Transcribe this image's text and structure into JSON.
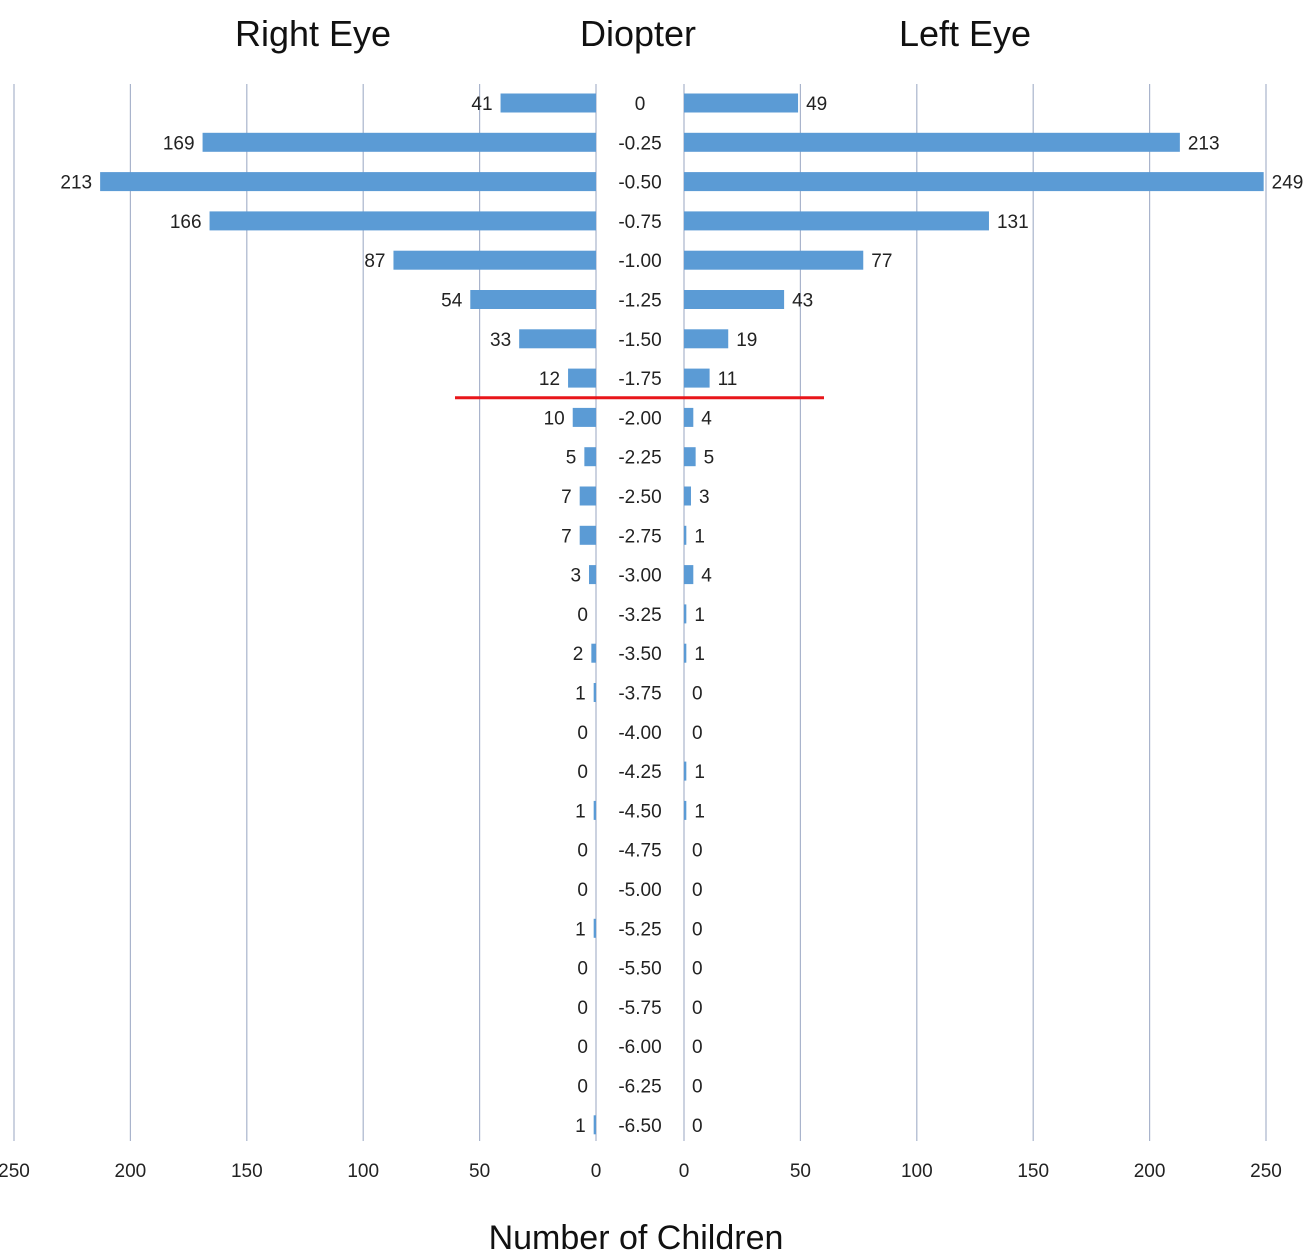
{
  "chart_data": {
    "type": "bar",
    "orientation": "horizontal-butterfly",
    "center_title": "Diopter",
    "xlabel": "Number of Children",
    "categories": [
      "0",
      "-0.25",
      "-0.50",
      "-0.75",
      "-1.00",
      "-1.25",
      "-1.50",
      "-1.75",
      "-2.00",
      "-2.25",
      "-2.50",
      "-2.75",
      "-3.00",
      "-3.25",
      "-3.50",
      "-3.75",
      "-4.00",
      "-4.25",
      "-4.50",
      "-4.75",
      "-5.00",
      "-5.25",
      "-5.50",
      "-5.75",
      "-6.00",
      "-6.25",
      "-6.50"
    ],
    "series": [
      {
        "name": "Right Eye",
        "side": "left",
        "values": [
          41,
          169,
          213,
          166,
          87,
          54,
          33,
          12,
          10,
          5,
          7,
          7,
          3,
          0,
          2,
          1,
          0,
          0,
          1,
          0,
          0,
          1,
          0,
          0,
          0,
          0,
          1
        ]
      },
      {
        "name": "Left Eye",
        "side": "right",
        "values": [
          49,
          213,
          249,
          131,
          77,
          43,
          19,
          11,
          4,
          5,
          3,
          1,
          4,
          1,
          1,
          0,
          0,
          1,
          1,
          0,
          0,
          0,
          0,
          0,
          0,
          0,
          0
        ]
      }
    ],
    "xlim": [
      0,
      250
    ],
    "xticks": [
      "0",
      "50",
      "100",
      "150",
      "200",
      "250"
    ],
    "grid": true,
    "bar_color": "#5B9BD5",
    "grid_color": "#A9B4CC",
    "reference_line": {
      "between": [
        "-1.75",
        "-2.00"
      ],
      "color": "#E8161A"
    }
  }
}
